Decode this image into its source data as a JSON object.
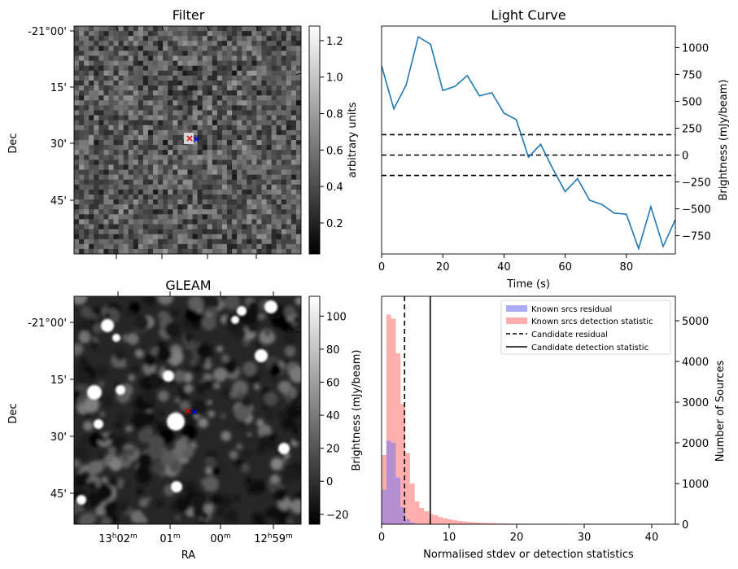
{
  "chart_data": [
    {
      "type": "heatmap",
      "panel": "filter",
      "title": "Filter",
      "ylabel": "Dec",
      "ytick_labels": [
        "-21°00'",
        "15'",
        "30'",
        "45'"
      ],
      "colorbar": {
        "label": "arbitrary units",
        "range": [
          0.03,
          1.28
        ],
        "ticks": [
          0.2,
          0.4,
          0.6,
          0.8,
          1.0,
          1.2
        ],
        "tick_labels": [
          "0.2",
          "0.4",
          "0.6",
          "0.8",
          "1.0",
          "1.2"
        ]
      },
      "markers": [
        {
          "symbol": "x",
          "color": "#e00000"
        },
        {
          "symbol": "x",
          "color": "#0000e0"
        }
      ],
      "grid": false
    },
    {
      "type": "line",
      "panel": "light_curve",
      "title": "Light Curve",
      "xlabel": "Time (s)",
      "ylabel": "Brightness (mJy/beam)",
      "xlim": [
        0,
        96
      ],
      "ylim": [
        -920,
        1200
      ],
      "xticks": [
        0,
        20,
        40,
        60,
        80
      ],
      "yticks": [
        -750,
        -500,
        -250,
        0,
        250,
        500,
        750,
        1000
      ],
      "series": [
        {
          "color": "#1f77b4",
          "x": [
            0,
            4,
            8,
            12,
            16,
            20,
            24,
            28,
            32,
            36,
            40,
            44,
            48,
            52,
            56,
            60,
            64,
            68,
            72,
            76,
            80,
            84,
            88,
            92,
            96
          ],
          "y": [
            830,
            430,
            650,
            1100,
            1030,
            600,
            640,
            740,
            550,
            580,
            390,
            330,
            -20,
            100,
            -130,
            -340,
            -220,
            -420,
            -460,
            -540,
            -550,
            -870,
            -480,
            -850,
            -600
          ]
        }
      ],
      "hlines": [
        {
          "y": 190,
          "style": "dashed"
        },
        {
          "y": 0,
          "style": "dashed"
        },
        {
          "y": -190,
          "style": "dashed"
        }
      ],
      "grid": false
    },
    {
      "type": "heatmap",
      "panel": "gleam",
      "title": "GLEAM",
      "xlabel": "RA",
      "ylabel": "Dec",
      "ytick_labels": [
        "-21°00'",
        "15'",
        "30'",
        "45'"
      ],
      "xtick_labels": [
        [
          "13",
          "h",
          "02",
          "m"
        ],
        [
          "01",
          "m"
        ],
        [
          "00",
          "m"
        ],
        [
          "12",
          "h",
          "59",
          "m"
        ]
      ],
      "colorbar": {
        "label": "Brightness (mJy/beam)",
        "range": [
          -26,
          112
        ],
        "ticks": [
          -20,
          0,
          20,
          40,
          60,
          80,
          100
        ],
        "tick_labels": [
          "−20",
          "0",
          "20",
          "40",
          "60",
          "80",
          "100"
        ]
      },
      "markers": [
        {
          "symbol": "x",
          "color": "#e00000"
        },
        {
          "symbol": "x",
          "color": "#0000e0"
        }
      ],
      "grid": false
    },
    {
      "type": "bar",
      "panel": "histogram",
      "xlabel": "Normalised stdev or detection statistics",
      "ylabel": "Number of Sources",
      "xlim": [
        0,
        43.5
      ],
      "ylim": [
        0,
        5600
      ],
      "xticks": [
        0,
        10,
        20,
        30,
        40
      ],
      "yticks": [
        0,
        1000,
        2000,
        3000,
        4000,
        5000
      ],
      "bin_width": 0.7,
      "series": [
        {
          "name": "Known srcs residual",
          "color": "#7777ee",
          "values": [
            850,
            2050,
            2000,
            1150,
            420,
            120,
            40,
            12,
            5
          ]
        },
        {
          "name": "Known srcs detection statistic",
          "color": "#ff9a9a",
          "values": [
            1700,
            5150,
            5050,
            4200,
            2950,
            1750,
            1000,
            560,
            400,
            320,
            250,
            220,
            175,
            145,
            120,
            100,
            80,
            70,
            55,
            48,
            40,
            35,
            30,
            25,
            22,
            20,
            18,
            16,
            14,
            12,
            11,
            10,
            9,
            8,
            8,
            7,
            7,
            6,
            6,
            5
          ]
        }
      ],
      "vlines": [
        {
          "name": "Candidate residual",
          "x": 3.4,
          "style": "dashed"
        },
        {
          "name": "Candidate detection statistic",
          "x": 7.2,
          "style": "solid"
        }
      ],
      "legend_position": "top-right",
      "grid": false
    }
  ]
}
